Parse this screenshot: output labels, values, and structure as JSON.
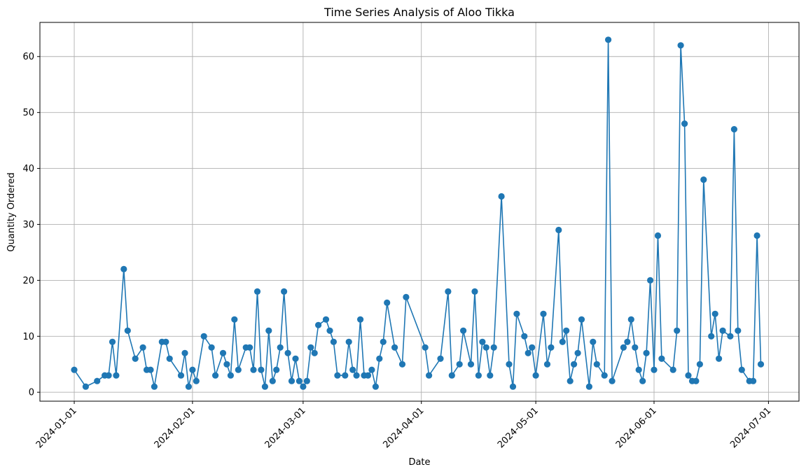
{
  "chart_data": {
    "type": "line",
    "title": "Time Series Analysis of Aloo Tikka",
    "xlabel": "Date",
    "ylabel": "Quantity Ordered",
    "x_tick_labels": [
      "2024-01-01",
      "2024-02-01",
      "2024-03-01",
      "2024-04-01",
      "2024-05-01",
      "2024-06-01",
      "2024-07-01"
    ],
    "y_tick_labels": [
      "0",
      "10",
      "20",
      "30",
      "40",
      "50",
      "60"
    ],
    "xlim": [
      "2023-12-23",
      "2024-07-09"
    ],
    "ylim": [
      -1.6,
      66.1
    ],
    "grid": true,
    "marker": "circle",
    "line_color": "#1f77b4",
    "series": [
      {
        "x": [
          "2024-01-01",
          "2024-01-04",
          "2024-01-07",
          "2024-01-09",
          "2024-01-10",
          "2024-01-11",
          "2024-01-12",
          "2024-01-14",
          "2024-01-15",
          "2024-01-17",
          "2024-01-19",
          "2024-01-20",
          "2024-01-21",
          "2024-01-22",
          "2024-01-24",
          "2024-01-25",
          "2024-01-26",
          "2024-01-29",
          "2024-01-30",
          "2024-01-31",
          "2024-02-01",
          "2024-02-02",
          "2024-02-04",
          "2024-02-06",
          "2024-02-07",
          "2024-02-09",
          "2024-02-10",
          "2024-02-11",
          "2024-02-12",
          "2024-02-13",
          "2024-02-15",
          "2024-02-16",
          "2024-02-17",
          "2024-02-18",
          "2024-02-19",
          "2024-02-20",
          "2024-02-21",
          "2024-02-22",
          "2024-02-23",
          "2024-02-24",
          "2024-02-25",
          "2024-02-26",
          "2024-02-27",
          "2024-02-28",
          "2024-02-29",
          "2024-03-01",
          "2024-03-02",
          "2024-03-03",
          "2024-03-04",
          "2024-03-05",
          "2024-03-07",
          "2024-03-08",
          "2024-03-09",
          "2024-03-10",
          "2024-03-12",
          "2024-03-13",
          "2024-03-14",
          "2024-03-15",
          "2024-03-16",
          "2024-03-17",
          "2024-03-18",
          "2024-03-19",
          "2024-03-20",
          "2024-03-21",
          "2024-03-22",
          "2024-03-23",
          "2024-03-25",
          "2024-03-27",
          "2024-03-28",
          "2024-04-02",
          "2024-04-03",
          "2024-04-06",
          "2024-04-08",
          "2024-04-09",
          "2024-04-11",
          "2024-04-12",
          "2024-04-14",
          "2024-04-15",
          "2024-04-16",
          "2024-04-17",
          "2024-04-18",
          "2024-04-19",
          "2024-04-20",
          "2024-04-22",
          "2024-04-24",
          "2024-04-25",
          "2024-04-26",
          "2024-04-28",
          "2024-04-29",
          "2024-04-30",
          "2024-05-01",
          "2024-05-03",
          "2024-05-04",
          "2024-05-05",
          "2024-05-07",
          "2024-05-08",
          "2024-05-09",
          "2024-05-10",
          "2024-05-11",
          "2024-05-12",
          "2024-05-13",
          "2024-05-15",
          "2024-05-16",
          "2024-05-17",
          "2024-05-19",
          "2024-05-20",
          "2024-05-21",
          "2024-05-24",
          "2024-05-25",
          "2024-05-26",
          "2024-05-27",
          "2024-05-28",
          "2024-05-29",
          "2024-05-30",
          "2024-05-31",
          "2024-06-01",
          "2024-06-02",
          "2024-06-03",
          "2024-06-06",
          "2024-06-07",
          "2024-06-08",
          "2024-06-09",
          "2024-06-10",
          "2024-06-11",
          "2024-06-12",
          "2024-06-13",
          "2024-06-14",
          "2024-06-16",
          "2024-06-17",
          "2024-06-18",
          "2024-06-19",
          "2024-06-21",
          "2024-06-22",
          "2024-06-23",
          "2024-06-24",
          "2024-06-26",
          "2024-06-27",
          "2024-06-28",
          "2024-06-29"
        ],
        "y": [
          4,
          1,
          2,
          3,
          3,
          9,
          3,
          22,
          11,
          6,
          8,
          4,
          4,
          1,
          9,
          9,
          6,
          3,
          7,
          1,
          4,
          2,
          10,
          8,
          3,
          7,
          5,
          3,
          13,
          4,
          8,
          8,
          4,
          18,
          4,
          1,
          11,
          2,
          4,
          8,
          18,
          7,
          2,
          6,
          2,
          1,
          2,
          8,
          7,
          12,
          13,
          11,
          9,
          3,
          3,
          9,
          4,
          3,
          13,
          3,
          3,
          4,
          1,
          6,
          9,
          16,
          8,
          5,
          17,
          8,
          3,
          6,
          18,
          3,
          5,
          11,
          5,
          18,
          3,
          9,
          8,
          3,
          8,
          35,
          5,
          1,
          14,
          10,
          7,
          8,
          3,
          14,
          5,
          8,
          29,
          9,
          11,
          2,
          5,
          7,
          13,
          1,
          9,
          5,
          3,
          63,
          2,
          8,
          9,
          13,
          8,
          4,
          2,
          7,
          20,
          4,
          28,
          6,
          4,
          11,
          62,
          48,
          3,
          2,
          2,
          5,
          38,
          10,
          14,
          6,
          11,
          10,
          47,
          11,
          4,
          2,
          2,
          28,
          5
        ]
      }
    ]
  }
}
